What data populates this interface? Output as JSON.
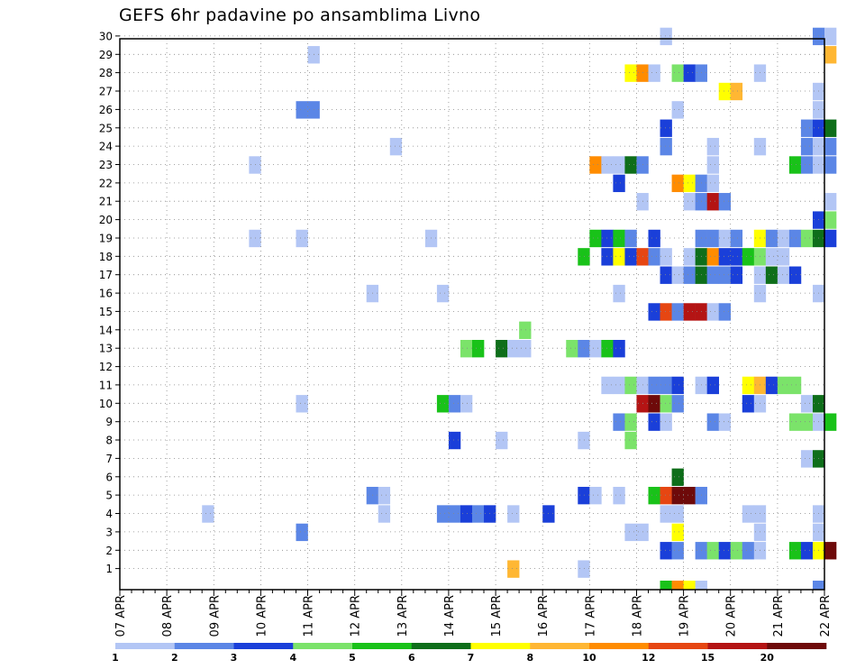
{
  "chart_data": {
    "type": "heatmap",
    "title": "GEFS 6hr padavine po ansamblima Livno",
    "x_labels": [
      "07 APR",
      "08 APR",
      "09 APR",
      "10 APR",
      "11 APR",
      "12 APR",
      "13 APR",
      "14 APR",
      "15 APR",
      "16 APR",
      "17 APR",
      "18 APR",
      "19 APR",
      "20 APR",
      "21 APR",
      "22 APR"
    ],
    "x_unit": "6h steps from 07 APR",
    "y_labels": [
      "1",
      "2",
      "3",
      "4",
      "5",
      "6",
      "7",
      "8",
      "9",
      "10",
      "11",
      "12",
      "13",
      "14",
      "15",
      "16",
      "17",
      "18",
      "19",
      "20",
      "21",
      "22",
      "23",
      "24",
      "25",
      "26",
      "27",
      "28",
      "29",
      "30"
    ],
    "grid": true,
    "colorbar": {
      "labels": [
        "1",
        "2",
        "3",
        "4",
        "5",
        "6",
        "7",
        "8",
        "10",
        "12",
        "15",
        "20"
      ],
      "colors": [
        "#b3c6f5",
        "#5b86e6",
        "#1a3fd9",
        "#7be36a",
        "#19c219",
        "#0e6e1a",
        "#ffff00",
        "#ffb733",
        "#ff8c00",
        "#e64612",
        "#b41414",
        "#6e0a0a"
      ]
    },
    "cells": [
      {
        "m": 30,
        "t": 46,
        "c": 0
      },
      {
        "m": 30,
        "t": 59,
        "c": 1
      },
      {
        "m": 30,
        "t": 60,
        "c": 0
      },
      {
        "m": 29,
        "t": 16,
        "c": 0
      },
      {
        "m": 29,
        "t": 60,
        "c": 7
      },
      {
        "m": 28,
        "t": 43,
        "c": 6
      },
      {
        "m": 28,
        "t": 44,
        "c": 8
      },
      {
        "m": 28,
        "t": 45,
        "c": 0
      },
      {
        "m": 28,
        "t": 47,
        "c": 3
      },
      {
        "m": 28,
        "t": 48,
        "c": 2
      },
      {
        "m": 28,
        "t": 49,
        "c": 1
      },
      {
        "m": 28,
        "t": 54,
        "c": 0
      },
      {
        "m": 27,
        "t": 51,
        "c": 6
      },
      {
        "m": 27,
        "t": 52,
        "c": 7
      },
      {
        "m": 27,
        "t": 59,
        "c": 0
      },
      {
        "m": 26,
        "t": 15,
        "c": 1
      },
      {
        "m": 26,
        "t": 16,
        "c": 1
      },
      {
        "m": 26,
        "t": 47,
        "c": 0
      },
      {
        "m": 26,
        "t": 59,
        "c": 0
      },
      {
        "m": 25,
        "t": 46,
        "c": 2
      },
      {
        "m": 25,
        "t": 58,
        "c": 1
      },
      {
        "m": 25,
        "t": 59,
        "c": 2
      },
      {
        "m": 25,
        "t": 60,
        "c": 5
      },
      {
        "m": 24,
        "t": 23,
        "c": 0
      },
      {
        "m": 24,
        "t": 46,
        "c": 1
      },
      {
        "m": 24,
        "t": 50,
        "c": 0
      },
      {
        "m": 24,
        "t": 54,
        "c": 0
      },
      {
        "m": 24,
        "t": 58,
        "c": 1
      },
      {
        "m": 24,
        "t": 59,
        "c": 0
      },
      {
        "m": 24,
        "t": 60,
        "c": 1
      },
      {
        "m": 23,
        "t": 11,
        "c": 0
      },
      {
        "m": 23,
        "t": 40,
        "c": 8
      },
      {
        "m": 23,
        "t": 41,
        "c": 0
      },
      {
        "m": 23,
        "t": 42,
        "c": 0
      },
      {
        "m": 23,
        "t": 43,
        "c": 5
      },
      {
        "m": 23,
        "t": 44,
        "c": 1
      },
      {
        "m": 23,
        "t": 50,
        "c": 0
      },
      {
        "m": 23,
        "t": 57,
        "c": 4
      },
      {
        "m": 23,
        "t": 58,
        "c": 1
      },
      {
        "m": 23,
        "t": 59,
        "c": 0
      },
      {
        "m": 23,
        "t": 60,
        "c": 1
      },
      {
        "m": 22,
        "t": 42,
        "c": 2
      },
      {
        "m": 22,
        "t": 47,
        "c": 8
      },
      {
        "m": 22,
        "t": 48,
        "c": 6
      },
      {
        "m": 22,
        "t": 49,
        "c": 1
      },
      {
        "m": 22,
        "t": 50,
        "c": 0
      },
      {
        "m": 21,
        "t": 44,
        "c": 0
      },
      {
        "m": 21,
        "t": 48,
        "c": 0
      },
      {
        "m": 21,
        "t": 49,
        "c": 1
      },
      {
        "m": 21,
        "t": 50,
        "c": 10
      },
      {
        "m": 21,
        "t": 51,
        "c": 1
      },
      {
        "m": 21,
        "t": 60,
        "c": 0
      },
      {
        "m": 20,
        "t": 59,
        "c": 2
      },
      {
        "m": 20,
        "t": 60,
        "c": 3
      },
      {
        "m": 19,
        "t": 11,
        "c": 0
      },
      {
        "m": 19,
        "t": 15,
        "c": 0
      },
      {
        "m": 19,
        "t": 26,
        "c": 0
      },
      {
        "m": 19,
        "t": 40,
        "c": 4
      },
      {
        "m": 19,
        "t": 41,
        "c": 2
      },
      {
        "m": 19,
        "t": 42,
        "c": 4
      },
      {
        "m": 19,
        "t": 43,
        "c": 1
      },
      {
        "m": 19,
        "t": 45,
        "c": 2
      },
      {
        "m": 19,
        "t": 49,
        "c": 1
      },
      {
        "m": 19,
        "t": 50,
        "c": 1
      },
      {
        "m": 19,
        "t": 51,
        "c": 0
      },
      {
        "m": 19,
        "t": 52,
        "c": 1
      },
      {
        "m": 19,
        "t": 54,
        "c": 6
      },
      {
        "m": 19,
        "t": 55,
        "c": 1
      },
      {
        "m": 19,
        "t": 56,
        "c": 0
      },
      {
        "m": 19,
        "t": 57,
        "c": 1
      },
      {
        "m": 19,
        "t": 58,
        "c": 3
      },
      {
        "m": 19,
        "t": 59,
        "c": 5
      },
      {
        "m": 19,
        "t": 60,
        "c": 2
      },
      {
        "m": 18,
        "t": 39,
        "c": 4
      },
      {
        "m": 18,
        "t": 41,
        "c": 2
      },
      {
        "m": 18,
        "t": 42,
        "c": 6
      },
      {
        "m": 18,
        "t": 43,
        "c": 2
      },
      {
        "m": 18,
        "t": 44,
        "c": 9
      },
      {
        "m": 18,
        "t": 45,
        "c": 1
      },
      {
        "m": 18,
        "t": 46,
        "c": 0
      },
      {
        "m": 18,
        "t": 48,
        "c": 0
      },
      {
        "m": 18,
        "t": 49,
        "c": 5
      },
      {
        "m": 18,
        "t": 50,
        "c": 8
      },
      {
        "m": 18,
        "t": 51,
        "c": 2
      },
      {
        "m": 18,
        "t": 52,
        "c": 2
      },
      {
        "m": 18,
        "t": 53,
        "c": 4
      },
      {
        "m": 18,
        "t": 54,
        "c": 3
      },
      {
        "m": 18,
        "t": 55,
        "c": 0
      },
      {
        "m": 18,
        "t": 56,
        "c": 0
      },
      {
        "m": 17,
        "t": 46,
        "c": 2
      },
      {
        "m": 17,
        "t": 47,
        "c": 0
      },
      {
        "m": 17,
        "t": 48,
        "c": 1
      },
      {
        "m": 17,
        "t": 49,
        "c": 5
      },
      {
        "m": 17,
        "t": 50,
        "c": 1
      },
      {
        "m": 17,
        "t": 51,
        "c": 1
      },
      {
        "m": 17,
        "t": 52,
        "c": 2
      },
      {
        "m": 17,
        "t": 54,
        "c": 0
      },
      {
        "m": 17,
        "t": 55,
        "c": 5
      },
      {
        "m": 17,
        "t": 56,
        "c": 0
      },
      {
        "m": 17,
        "t": 57,
        "c": 2
      },
      {
        "m": 16,
        "t": 21,
        "c": 0
      },
      {
        "m": 16,
        "t": 27,
        "c": 0
      },
      {
        "m": 16,
        "t": 42,
        "c": 0
      },
      {
        "m": 16,
        "t": 54,
        "c": 0
      },
      {
        "m": 16,
        "t": 59,
        "c": 0
      },
      {
        "m": 15,
        "t": 45,
        "c": 2
      },
      {
        "m": 15,
        "t": 46,
        "c": 9
      },
      {
        "m": 15,
        "t": 47,
        "c": 1
      },
      {
        "m": 15,
        "t": 48,
        "c": 10
      },
      {
        "m": 15,
        "t": 49,
        "c": 10
      },
      {
        "m": 15,
        "t": 50,
        "c": 0
      },
      {
        "m": 15,
        "t": 51,
        "c": 1
      },
      {
        "m": 14,
        "t": 34,
        "c": 3
      },
      {
        "m": 13,
        "t": 29,
        "c": 3
      },
      {
        "m": 13,
        "t": 30,
        "c": 4
      },
      {
        "m": 13,
        "t": 32,
        "c": 5
      },
      {
        "m": 13,
        "t": 33,
        "c": 0
      },
      {
        "m": 13,
        "t": 34,
        "c": 0
      },
      {
        "m": 13,
        "t": 38,
        "c": 3
      },
      {
        "m": 13,
        "t": 39,
        "c": 1
      },
      {
        "m": 13,
        "t": 40,
        "c": 0
      },
      {
        "m": 13,
        "t": 41,
        "c": 4
      },
      {
        "m": 13,
        "t": 42,
        "c": 2
      },
      {
        "m": 11,
        "t": 41,
        "c": 0
      },
      {
        "m": 11,
        "t": 42,
        "c": 0
      },
      {
        "m": 11,
        "t": 43,
        "c": 3
      },
      {
        "m": 11,
        "t": 44,
        "c": 0
      },
      {
        "m": 11,
        "t": 45,
        "c": 1
      },
      {
        "m": 11,
        "t": 46,
        "c": 1
      },
      {
        "m": 11,
        "t": 47,
        "c": 2
      },
      {
        "m": 11,
        "t": 49,
        "c": 0
      },
      {
        "m": 11,
        "t": 50,
        "c": 2
      },
      {
        "m": 11,
        "t": 53,
        "c": 6
      },
      {
        "m": 11,
        "t": 54,
        "c": 7
      },
      {
        "m": 11,
        "t": 55,
        "c": 2
      },
      {
        "m": 11,
        "t": 56,
        "c": 3
      },
      {
        "m": 11,
        "t": 57,
        "c": 3
      },
      {
        "m": 10,
        "t": 15,
        "c": 0
      },
      {
        "m": 10,
        "t": 27,
        "c": 4
      },
      {
        "m": 10,
        "t": 28,
        "c": 1
      },
      {
        "m": 10,
        "t": 29,
        "c": 0
      },
      {
        "m": 10,
        "t": 44,
        "c": 10
      },
      {
        "m": 10,
        "t": 45,
        "c": 11
      },
      {
        "m": 10,
        "t": 46,
        "c": 3
      },
      {
        "m": 10,
        "t": 47,
        "c": 1
      },
      {
        "m": 10,
        "t": 53,
        "c": 2
      },
      {
        "m": 10,
        "t": 54,
        "c": 0
      },
      {
        "m": 10,
        "t": 58,
        "c": 0
      },
      {
        "m": 10,
        "t": 59,
        "c": 5
      },
      {
        "m": 9,
        "t": 42,
        "c": 1
      },
      {
        "m": 9,
        "t": 43,
        "c": 3
      },
      {
        "m": 9,
        "t": 45,
        "c": 2
      },
      {
        "m": 9,
        "t": 46,
        "c": 0
      },
      {
        "m": 9,
        "t": 50,
        "c": 1
      },
      {
        "m": 9,
        "t": 51,
        "c": 0
      },
      {
        "m": 9,
        "t": 57,
        "c": 3
      },
      {
        "m": 9,
        "t": 58,
        "c": 3
      },
      {
        "m": 9,
        "t": 59,
        "c": 0
      },
      {
        "m": 9,
        "t": 60,
        "c": 4
      },
      {
        "m": 8,
        "t": 28,
        "c": 2
      },
      {
        "m": 8,
        "t": 32,
        "c": 0
      },
      {
        "m": 8,
        "t": 39,
        "c": 0
      },
      {
        "m": 8,
        "t": 43,
        "c": 3
      },
      {
        "m": 7,
        "t": 58,
        "c": 0
      },
      {
        "m": 7,
        "t": 59,
        "c": 5
      },
      {
        "m": 6,
        "t": 47,
        "c": 5
      },
      {
        "m": 5,
        "t": 21,
        "c": 1
      },
      {
        "m": 5,
        "t": 22,
        "c": 0
      },
      {
        "m": 5,
        "t": 39,
        "c": 2
      },
      {
        "m": 5,
        "t": 40,
        "c": 0
      },
      {
        "m": 5,
        "t": 42,
        "c": 0
      },
      {
        "m": 5,
        "t": 45,
        "c": 4
      },
      {
        "m": 5,
        "t": 46,
        "c": 9
      },
      {
        "m": 5,
        "t": 47,
        "c": 11
      },
      {
        "m": 5,
        "t": 48,
        "c": 11
      },
      {
        "m": 5,
        "t": 49,
        "c": 1
      },
      {
        "m": 4,
        "t": 7,
        "c": 0
      },
      {
        "m": 4,
        "t": 22,
        "c": 0
      },
      {
        "m": 4,
        "t": 27,
        "c": 1
      },
      {
        "m": 4,
        "t": 28,
        "c": 1
      },
      {
        "m": 4,
        "t": 29,
        "c": 2
      },
      {
        "m": 4,
        "t": 30,
        "c": 1
      },
      {
        "m": 4,
        "t": 31,
        "c": 2
      },
      {
        "m": 4,
        "t": 33,
        "c": 0
      },
      {
        "m": 4,
        "t": 36,
        "c": 2
      },
      {
        "m": 4,
        "t": 46,
        "c": 0
      },
      {
        "m": 4,
        "t": 47,
        "c": 0
      },
      {
        "m": 4,
        "t": 53,
        "c": 0
      },
      {
        "m": 4,
        "t": 54,
        "c": 0
      },
      {
        "m": 4,
        "t": 59,
        "c": 0
      },
      {
        "m": 3,
        "t": 15,
        "c": 1
      },
      {
        "m": 3,
        "t": 43,
        "c": 0
      },
      {
        "m": 3,
        "t": 44,
        "c": 0
      },
      {
        "m": 3,
        "t": 47,
        "c": 6
      },
      {
        "m": 3,
        "t": 54,
        "c": 0
      },
      {
        "m": 3,
        "t": 59,
        "c": 0
      },
      {
        "m": 2,
        "t": 46,
        "c": 2
      },
      {
        "m": 2,
        "t": 47,
        "c": 1
      },
      {
        "m": 2,
        "t": 49,
        "c": 1
      },
      {
        "m": 2,
        "t": 50,
        "c": 3
      },
      {
        "m": 2,
        "t": 51,
        "c": 2
      },
      {
        "m": 2,
        "t": 52,
        "c": 3
      },
      {
        "m": 2,
        "t": 53,
        "c": 1
      },
      {
        "m": 2,
        "t": 54,
        "c": 0
      },
      {
        "m": 2,
        "t": 57,
        "c": 4
      },
      {
        "m": 2,
        "t": 58,
        "c": 2
      },
      {
        "m": 2,
        "t": 59,
        "c": 6
      },
      {
        "m": 2,
        "t": 60,
        "c": 11
      },
      {
        "m": 1,
        "t": 33,
        "c": 7
      },
      {
        "m": 1,
        "t": 39,
        "c": 0
      },
      {
        "m": 0,
        "t": 46,
        "c": 4
      },
      {
        "m": 0,
        "t": 47,
        "c": 8
      },
      {
        "m": 0,
        "t": 48,
        "c": 6
      },
      {
        "m": 0,
        "t": 49,
        "c": 0
      },
      {
        "m": 0,
        "t": 59,
        "c": 1
      }
    ]
  }
}
